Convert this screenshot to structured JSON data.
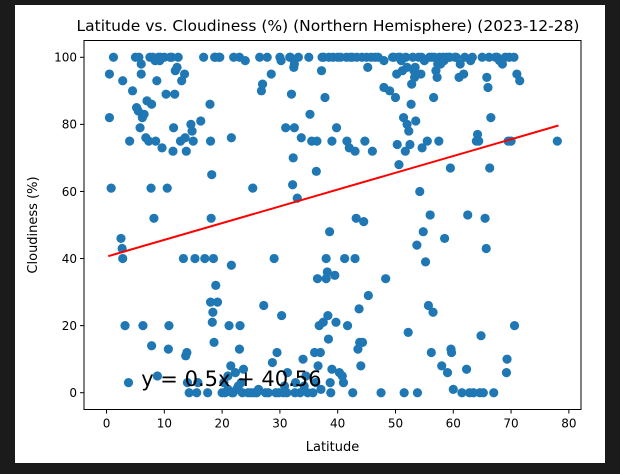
{
  "chart_data": {
    "type": "scatter",
    "title": "Latitude vs. Cloudiness (%) (Northern Hemisphere) (2023-12-28)",
    "xlabel": "Latitude",
    "ylabel": "Cloudiness (%)",
    "xlim": [
      -3.9,
      82.1
    ],
    "ylim": [
      -5,
      105
    ],
    "xticks": [
      0,
      10,
      20,
      30,
      40,
      50,
      60,
      70,
      80
    ],
    "yticks": [
      0,
      20,
      40,
      60,
      80,
      100
    ],
    "grid": false,
    "point_color": "#1f77b4",
    "regression": {
      "slope": 0.5,
      "intercept": 40.56,
      "x_range": [
        0.3,
        78.2
      ],
      "color": "#ff0000",
      "equation": "y = 0.5x + 40.56",
      "equation_position": [
        6,
        2
      ],
      "equation_color": "#ff0000"
    },
    "points": [
      [
        0.5,
        95
      ],
      [
        0.5,
        82
      ],
      [
        0.8,
        61
      ],
      [
        1.2,
        100
      ],
      [
        2.5,
        46
      ],
      [
        2.7,
        43
      ],
      [
        2.8,
        40
      ],
      [
        2.8,
        93
      ],
      [
        3.2,
        20
      ],
      [
        3.8,
        3
      ],
      [
        4,
        75
      ],
      [
        4.5,
        90
      ],
      [
        5,
        100
      ],
      [
        5.2,
        85
      ],
      [
        5.5,
        84
      ],
      [
        5.6,
        100
      ],
      [
        5.8,
        79
      ],
      [
        6,
        98
      ],
      [
        6,
        95
      ],
      [
        6.2,
        82
      ],
      [
        6.3,
        20
      ],
      [
        6.5,
        83
      ],
      [
        6.8,
        76
      ],
      [
        7,
        87
      ],
      [
        7.3,
        75
      ],
      [
        7.5,
        100
      ],
      [
        7.7,
        61
      ],
      [
        7.8,
        14
      ],
      [
        7.8,
        86
      ],
      [
        8,
        100
      ],
      [
        8.2,
        52
      ],
      [
        8.4,
        99
      ],
      [
        8.5,
        75
      ],
      [
        8.7,
        93
      ],
      [
        8.8,
        5
      ],
      [
        9,
        100
      ],
      [
        9.2,
        99
      ],
      [
        9.3,
        100
      ],
      [
        9.6,
        73
      ],
      [
        10,
        100
      ],
      [
        10.3,
        89
      ],
      [
        10.5,
        61
      ],
      [
        10.7,
        13
      ],
      [
        10.8,
        20
      ],
      [
        11,
        100
      ],
      [
        11.3,
        100
      ],
      [
        11.5,
        72
      ],
      [
        11.6,
        79
      ],
      [
        11.8,
        89
      ],
      [
        11.9,
        96
      ],
      [
        12.2,
        97
      ],
      [
        12.4,
        100
      ],
      [
        12.8,
        75
      ],
      [
        13,
        93
      ],
      [
        13.3,
        40
      ],
      [
        13.5,
        95
      ],
      [
        13.6,
        76
      ],
      [
        13.7,
        11
      ],
      [
        13.8,
        72
      ],
      [
        13.9,
        12
      ],
      [
        14,
        3
      ],
      [
        14.3,
        0
      ],
      [
        14.6,
        80
      ],
      [
        14.8,
        78
      ],
      [
        15,
        75
      ],
      [
        15.3,
        40
      ],
      [
        15.6,
        0
      ],
      [
        15.8,
        3
      ],
      [
        16.3,
        81
      ],
      [
        16.8,
        100
      ],
      [
        17,
        40
      ],
      [
        17.5,
        0
      ],
      [
        17.9,
        86
      ],
      [
        18,
        27
      ],
      [
        18,
        75
      ],
      [
        18.1,
        52
      ],
      [
        18.2,
        65
      ],
      [
        18.3,
        21
      ],
      [
        18.4,
        24
      ],
      [
        18.5,
        40
      ],
      [
        18.6,
        15
      ],
      [
        18.7,
        100
      ],
      [
        18.8,
        100
      ],
      [
        18.9,
        32
      ],
      [
        19.2,
        27
      ],
      [
        19.4,
        100
      ],
      [
        19.6,
        100
      ],
      [
        20,
        0
      ],
      [
        20.3,
        3
      ],
      [
        20.5,
        0
      ],
      [
        21,
        1
      ],
      [
        21,
        5
      ],
      [
        21.2,
        20
      ],
      [
        21.5,
        8
      ],
      [
        21.6,
        76
      ],
      [
        21.6,
        38
      ],
      [
        21.7,
        0
      ],
      [
        21.9,
        0
      ],
      [
        22,
        100
      ],
      [
        22.3,
        6
      ],
      [
        22.5,
        1
      ],
      [
        22.8,
        2
      ],
      [
        23,
        100
      ],
      [
        23,
        13
      ],
      [
        23.1,
        20
      ],
      [
        23.3,
        3
      ],
      [
        23.5,
        0
      ],
      [
        23.7,
        7
      ],
      [
        24,
        99
      ],
      [
        24.5,
        0
      ],
      [
        25,
        0
      ],
      [
        25.3,
        61
      ],
      [
        25.5,
        0
      ],
      [
        26,
        0
      ],
      [
        26.3,
        1
      ],
      [
        26.5,
        100
      ],
      [
        26.8,
        90
      ],
      [
        27,
        92
      ],
      [
        27.2,
        26
      ],
      [
        27.5,
        0
      ],
      [
        27.8,
        100
      ],
      [
        28,
        0
      ],
      [
        28.5,
        95
      ],
      [
        28.7,
        9
      ],
      [
        29,
        40
      ],
      [
        29.3,
        0
      ],
      [
        29.5,
        12
      ],
      [
        29.8,
        0
      ],
      [
        30,
        100
      ],
      [
        30.2,
        99
      ],
      [
        30.3,
        23
      ],
      [
        30.6,
        0
      ],
      [
        30.8,
        2
      ],
      [
        31,
        79
      ],
      [
        31.2,
        0
      ],
      [
        31.3,
        6
      ],
      [
        31.7,
        100
      ],
      [
        31.8,
        100
      ],
      [
        32,
        89
      ],
      [
        32.2,
        62
      ],
      [
        32.3,
        70
      ],
      [
        32.4,
        97
      ],
      [
        32.5,
        79
      ],
      [
        32.5,
        98
      ],
      [
        32.6,
        0
      ],
      [
        32.7,
        3
      ],
      [
        33,
        58
      ],
      [
        33.2,
        100
      ],
      [
        33.5,
        0
      ],
      [
        33.7,
        76
      ],
      [
        34,
        10
      ],
      [
        34.2,
        2
      ],
      [
        34.5,
        5
      ],
      [
        34.8,
        0
      ],
      [
        35,
        100
      ],
      [
        35.2,
        83
      ],
      [
        35.5,
        75
      ],
      [
        35.7,
        0
      ],
      [
        36,
        12
      ],
      [
        36.2,
        3
      ],
      [
        36.3,
        66
      ],
      [
        36.4,
        75
      ],
      [
        36.5,
        34
      ],
      [
        36.6,
        8
      ],
      [
        36.8,
        20
      ],
      [
        37,
        12
      ],
      [
        37.1,
        1
      ],
      [
        37.2,
        96
      ],
      [
        37.3,
        100
      ],
      [
        37.5,
        21
      ],
      [
        37.6,
        100
      ],
      [
        37.8,
        88
      ],
      [
        38,
        40
      ],
      [
        38,
        34
      ],
      [
        38.2,
        36
      ],
      [
        38.3,
        23
      ],
      [
        38.4,
        16
      ],
      [
        38.5,
        100
      ],
      [
        38.6,
        48
      ],
      [
        38.7,
        3
      ],
      [
        38.8,
        0
      ],
      [
        39,
        75
      ],
      [
        39,
        7
      ],
      [
        39.2,
        100
      ],
      [
        39.5,
        35
      ],
      [
        39.7,
        21
      ],
      [
        39.8,
        79
      ],
      [
        40,
        100
      ],
      [
        40.3,
        6
      ],
      [
        40.5,
        100
      ],
      [
        40.8,
        5
      ],
      [
        41,
        3
      ],
      [
        41.2,
        40
      ],
      [
        41.5,
        100
      ],
      [
        41.6,
        75
      ],
      [
        41.7,
        20
      ],
      [
        42,
        73
      ],
      [
        42.2,
        100
      ],
      [
        42.5,
        100
      ],
      [
        42.6,
        0
      ],
      [
        43,
        40
      ],
      [
        43,
        72
      ],
      [
        43.2,
        52
      ],
      [
        43.3,
        100
      ],
      [
        43.5,
        13
      ],
      [
        43.7,
        25
      ],
      [
        43.8,
        15
      ],
      [
        44,
        8
      ],
      [
        44.2,
        100
      ],
      [
        44.3,
        15
      ],
      [
        44.5,
        51
      ],
      [
        44.7,
        75
      ],
      [
        45,
        100
      ],
      [
        45.2,
        97
      ],
      [
        45.3,
        29
      ],
      [
        45.8,
        100
      ],
      [
        46,
        72
      ],
      [
        46.5,
        100
      ],
      [
        47,
        100
      ],
      [
        47.5,
        0
      ],
      [
        48,
        99
      ],
      [
        48,
        91
      ],
      [
        48.3,
        34
      ],
      [
        49,
        90
      ],
      [
        49.5,
        100
      ],
      [
        49.7,
        100
      ],
      [
        50,
        88
      ],
      [
        50.2,
        95
      ],
      [
        50.3,
        74
      ],
      [
        50.5,
        100
      ],
      [
        50.6,
        68
      ],
      [
        50.8,
        100
      ],
      [
        51,
        99
      ],
      [
        51.2,
        96
      ],
      [
        51.4,
        82
      ],
      [
        51.5,
        0
      ],
      [
        51.7,
        72
      ],
      [
        51.8,
        100
      ],
      [
        52,
        97
      ],
      [
        52,
        80
      ],
      [
        52.2,
        18
      ],
      [
        52.3,
        78
      ],
      [
        52.5,
        74
      ],
      [
        52.7,
        86
      ],
      [
        52.8,
        92
      ],
      [
        53,
        100
      ],
      [
        53.2,
        96
      ],
      [
        53.3,
        94
      ],
      [
        53.4,
        97
      ],
      [
        53.5,
        81
      ],
      [
        53.7,
        44
      ],
      [
        53.8,
        0
      ],
      [
        54,
        100
      ],
      [
        54.2,
        60
      ],
      [
        54.4,
        95
      ],
      [
        54.5,
        100
      ],
      [
        54.6,
        73
      ],
      [
        54.8,
        48
      ],
      [
        55,
        99
      ],
      [
        55.2,
        39
      ],
      [
        55.5,
        75
      ],
      [
        55.7,
        26
      ],
      [
        55.9,
        100
      ],
      [
        56,
        53
      ],
      [
        56.2,
        12
      ],
      [
        56.3,
        100
      ],
      [
        56.5,
        24
      ],
      [
        56.6,
        88
      ],
      [
        56.7,
        100
      ],
      [
        57,
        96
      ],
      [
        57.2,
        94
      ],
      [
        57.3,
        98
      ],
      [
        57.5,
        75
      ],
      [
        57.6,
        100
      ],
      [
        57.8,
        98
      ],
      [
        58,
        8
      ],
      [
        58.2,
        100
      ],
      [
        58.4,
        99
      ],
      [
        58.5,
        46
      ],
      [
        58.8,
        100
      ],
      [
        59,
        6
      ],
      [
        59.2,
        100
      ],
      [
        59.4,
        100
      ],
      [
        59.5,
        67
      ],
      [
        59.6,
        13
      ],
      [
        59.7,
        12
      ],
      [
        60,
        1
      ],
      [
        60.3,
        100
      ],
      [
        60.5,
        100
      ],
      [
        61,
        94
      ],
      [
        61.2,
        98
      ],
      [
        61.5,
        0
      ],
      [
        61.8,
        95
      ],
      [
        62,
        100
      ],
      [
        62.3,
        7
      ],
      [
        62.5,
        53
      ],
      [
        62.8,
        0
      ],
      [
        63,
        99
      ],
      [
        63.3,
        100
      ],
      [
        63.5,
        0
      ],
      [
        64,
        75
      ],
      [
        64.2,
        77
      ],
      [
        64.4,
        75
      ],
      [
        64.6,
        0
      ],
      [
        64.8,
        17
      ],
      [
        65,
        100
      ],
      [
        65.2,
        0
      ],
      [
        65.5,
        52
      ],
      [
        65.7,
        43
      ],
      [
        65.8,
        94
      ],
      [
        66,
        91
      ],
      [
        66.2,
        100
      ],
      [
        66.3,
        67
      ],
      [
        66.5,
        82
      ],
      [
        67,
        0
      ],
      [
        67.3,
        100
      ],
      [
        67.6,
        100
      ],
      [
        68,
        99
      ],
      [
        68.5,
        98
      ],
      [
        69,
        100
      ],
      [
        69.2,
        6
      ],
      [
        69.3,
        10
      ],
      [
        69.5,
        75
      ],
      [
        69.7,
        100
      ],
      [
        70,
        75
      ],
      [
        70.5,
        100
      ],
      [
        70.6,
        20
      ],
      [
        71,
        95
      ],
      [
        71.5,
        93
      ],
      [
        78,
        75
      ]
    ]
  }
}
